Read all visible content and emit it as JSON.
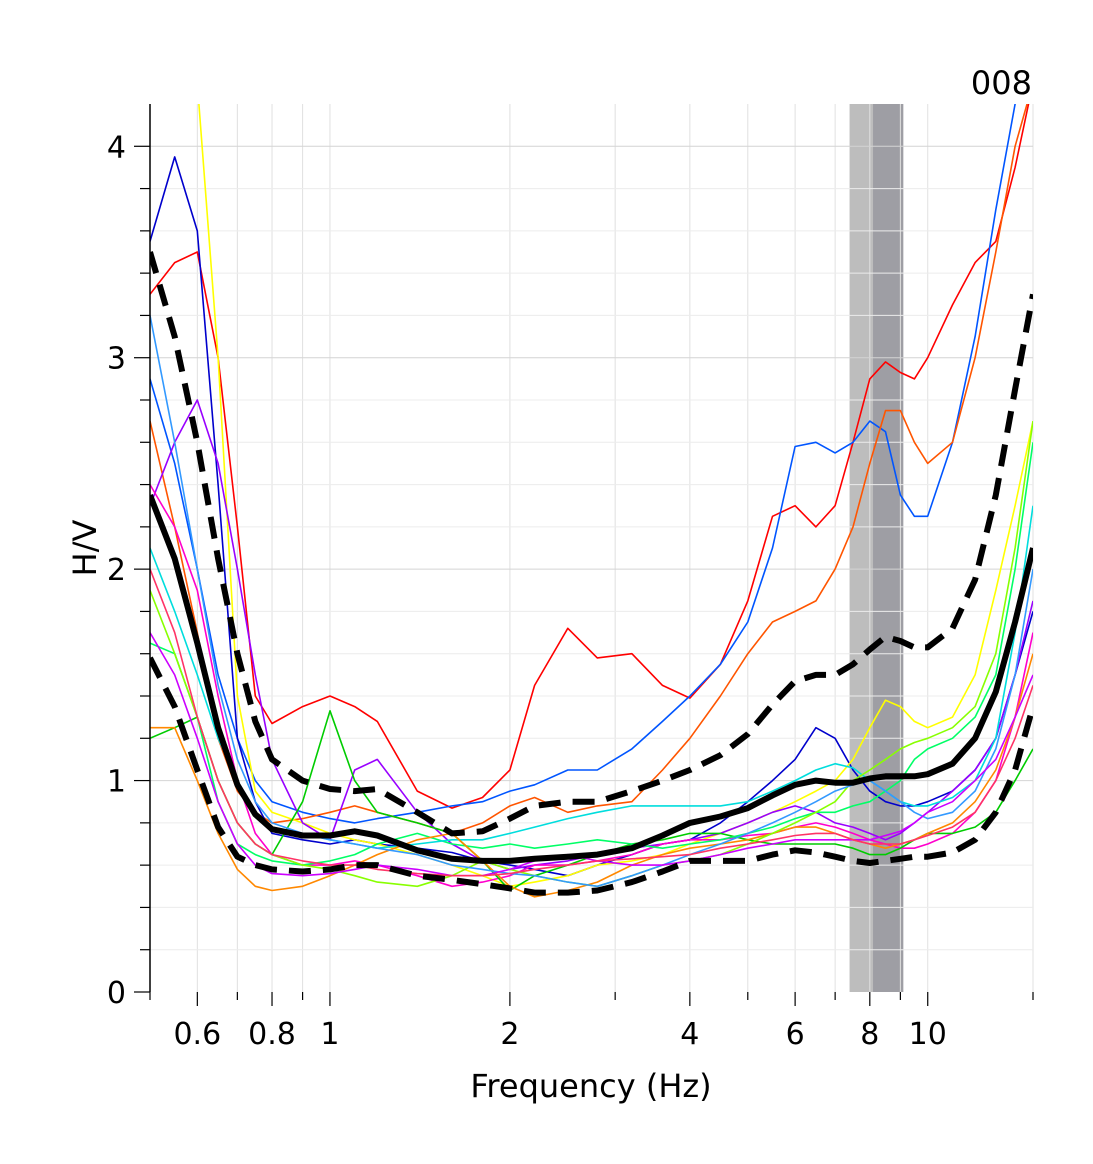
{
  "chart_data": {
    "type": "line",
    "title": "008",
    "xlabel": "Frequency (Hz)",
    "ylabel": "H/V",
    "xscale": "log",
    "xlim": [
      0.5,
      15
    ],
    "ylim": [
      0,
      4.2
    ],
    "x_ticks": [
      {
        "value": 0.6,
        "label": "0.6"
      },
      {
        "value": 0.8,
        "label": "0.8"
      },
      {
        "value": 1,
        "label": "1"
      },
      {
        "value": 2,
        "label": "2"
      },
      {
        "value": 4,
        "label": "4"
      },
      {
        "value": 6,
        "label": "6"
      },
      {
        "value": 8,
        "label": "8"
      },
      {
        "value": 10,
        "label": "10"
      }
    ],
    "y_ticks": [
      {
        "value": 0,
        "label": "0"
      },
      {
        "value": 1,
        "label": "1"
      },
      {
        "value": 2,
        "label": "2"
      },
      {
        "value": 3,
        "label": "3"
      },
      {
        "value": 4,
        "label": "4"
      }
    ],
    "grid": true,
    "peak_band": {
      "outer": [
        7.4,
        9.1
      ],
      "inner": [
        8.1,
        9.1
      ],
      "outer_color": "#bdbdbd",
      "inner_color": "#9e9ea4"
    },
    "x": [
      0.5,
      0.55,
      0.6,
      0.65,
      0.7,
      0.75,
      0.8,
      0.9,
      1.0,
      1.1,
      1.2,
      1.4,
      1.6,
      1.8,
      2.0,
      2.2,
      2.5,
      2.8,
      3.2,
      3.6,
      4.0,
      4.5,
      5.0,
      5.5,
      6.0,
      6.5,
      7.0,
      7.5,
      8.0,
      8.5,
      9.0,
      9.5,
      10,
      11,
      12,
      13,
      14,
      15
    ],
    "mean": {
      "color": "#000000",
      "values": [
        2.35,
        2.05,
        1.65,
        1.25,
        0.98,
        0.84,
        0.77,
        0.74,
        0.74,
        0.76,
        0.74,
        0.67,
        0.63,
        0.62,
        0.62,
        0.63,
        0.64,
        0.65,
        0.68,
        0.74,
        0.8,
        0.83,
        0.87,
        0.93,
        0.98,
        1.0,
        0.99,
        0.99,
        1.01,
        1.02,
        1.02,
        1.02,
        1.03,
        1.08,
        1.2,
        1.42,
        1.75,
        2.1
      ]
    },
    "std_plus": {
      "color": "#000000",
      "values": [
        3.5,
        3.1,
        2.6,
        2.05,
        1.6,
        1.28,
        1.1,
        1.0,
        0.96,
        0.95,
        0.96,
        0.85,
        0.75,
        0.76,
        0.82,
        0.88,
        0.9,
        0.9,
        0.95,
        1.0,
        1.05,
        1.12,
        1.22,
        1.36,
        1.47,
        1.5,
        1.5,
        1.55,
        1.62,
        1.68,
        1.66,
        1.63,
        1.63,
        1.72,
        1.95,
        2.35,
        2.85,
        3.3
      ]
    },
    "std_minus": {
      "color": "#000000",
      "values": [
        1.58,
        1.35,
        1.05,
        0.78,
        0.64,
        0.6,
        0.58,
        0.57,
        0.58,
        0.6,
        0.6,
        0.55,
        0.53,
        0.51,
        0.49,
        0.47,
        0.47,
        0.48,
        0.52,
        0.57,
        0.62,
        0.62,
        0.62,
        0.65,
        0.67,
        0.66,
        0.64,
        0.62,
        0.61,
        0.62,
        0.63,
        0.64,
        0.64,
        0.66,
        0.72,
        0.85,
        1.05,
        1.35
      ]
    },
    "windows": [
      {
        "color": "#ff0000",
        "values": [
          3.3,
          3.45,
          3.5,
          3.0,
          2.2,
          1.4,
          1.27,
          1.35,
          1.4,
          1.35,
          1.28,
          0.95,
          0.87,
          0.92,
          1.05,
          1.45,
          1.72,
          1.58,
          1.6,
          1.45,
          1.39,
          1.55,
          1.85,
          2.25,
          2.3,
          2.2,
          2.3,
          2.6,
          2.9,
          2.98,
          2.93,
          2.9,
          3.0,
          3.25,
          3.45,
          3.55,
          3.9,
          4.3
        ]
      },
      {
        "color": "#0055ff",
        "values": [
          2.9,
          2.5,
          2.0,
          1.5,
          1.2,
          1.0,
          0.9,
          0.85,
          0.82,
          0.8,
          0.82,
          0.85,
          0.88,
          0.9,
          0.95,
          0.98,
          1.05,
          1.05,
          1.15,
          1.28,
          1.4,
          1.55,
          1.75,
          2.1,
          2.58,
          2.6,
          2.55,
          2.6,
          2.7,
          2.65,
          2.35,
          2.25,
          2.25,
          2.6,
          3.1,
          3.7,
          4.2,
          4.6
        ]
      },
      {
        "color": "#ff5500",
        "values": [
          2.7,
          2.2,
          1.7,
          1.2,
          0.95,
          0.85,
          0.8,
          0.82,
          0.85,
          0.88,
          0.85,
          0.8,
          0.75,
          0.8,
          0.88,
          0.92,
          0.85,
          0.88,
          0.9,
          1.05,
          1.2,
          1.4,
          1.6,
          1.75,
          1.8,
          1.85,
          2.0,
          2.2,
          2.5,
          2.75,
          2.75,
          2.6,
          2.5,
          2.6,
          3.0,
          3.5,
          4.0,
          4.3
        ]
      },
      {
        "color": "#0000cc",
        "values": [
          3.55,
          3.95,
          3.6,
          2.4,
          1.2,
          0.9,
          0.75,
          0.72,
          0.7,
          0.72,
          0.7,
          0.68,
          0.66,
          0.62,
          0.6,
          0.58,
          0.55,
          0.6,
          0.65,
          0.7,
          0.72,
          0.8,
          0.9,
          1.0,
          1.1,
          1.25,
          1.2,
          1.05,
          0.95,
          0.9,
          0.88,
          0.88,
          0.9,
          0.95,
          1.05,
          1.2,
          1.5,
          1.8
        ]
      },
      {
        "color": "#ffff00",
        "values": [
          4.3,
          4.3,
          4.3,
          3.0,
          1.4,
          0.95,
          0.85,
          0.8,
          0.75,
          0.72,
          0.7,
          0.65,
          0.6,
          0.55,
          0.5,
          0.52,
          0.55,
          0.6,
          0.62,
          0.65,
          0.7,
          0.75,
          0.8,
          0.85,
          0.9,
          0.95,
          1.0,
          1.1,
          1.25,
          1.38,
          1.35,
          1.28,
          1.25,
          1.3,
          1.5,
          1.9,
          2.3,
          2.7
        ]
      },
      {
        "color": "#9900ff",
        "values": [
          2.3,
          2.6,
          2.8,
          2.5,
          2.0,
          1.5,
          1.1,
          0.8,
          0.72,
          1.05,
          1.1,
          0.85,
          0.7,
          0.62,
          0.58,
          0.6,
          0.62,
          0.65,
          0.68,
          0.7,
          0.72,
          0.75,
          0.8,
          0.85,
          0.88,
          0.85,
          0.8,
          0.78,
          0.75,
          0.72,
          0.75,
          0.8,
          0.85,
          0.95,
          1.05,
          1.2,
          1.5,
          1.85
        ]
      },
      {
        "color": "#ff00cc",
        "values": [
          2.4,
          2.2,
          1.9,
          1.4,
          1.0,
          0.75,
          0.65,
          0.6,
          0.6,
          0.62,
          0.6,
          0.55,
          0.5,
          0.52,
          0.55,
          0.6,
          0.6,
          0.62,
          0.65,
          0.7,
          0.72,
          0.72,
          0.74,
          0.75,
          0.78,
          0.8,
          0.78,
          0.75,
          0.72,
          0.7,
          0.68,
          0.68,
          0.7,
          0.75,
          0.85,
          1.0,
          1.3,
          1.7
        ]
      },
      {
        "color": "#00cc00",
        "values": [
          1.2,
          1.25,
          1.3,
          1.0,
          0.8,
          0.7,
          0.65,
          0.9,
          1.33,
          1.0,
          0.85,
          0.8,
          0.75,
          0.62,
          0.48,
          0.55,
          0.6,
          0.65,
          0.7,
          0.72,
          0.75,
          0.75,
          0.72,
          0.7,
          0.7,
          0.7,
          0.7,
          0.68,
          0.65,
          0.65,
          0.68,
          0.72,
          0.75,
          0.75,
          0.78,
          0.85,
          1.0,
          1.15
        ]
      },
      {
        "color": "#00ff66",
        "values": [
          1.65,
          1.6,
          1.3,
          0.9,
          0.7,
          0.65,
          0.62,
          0.6,
          0.62,
          0.65,
          0.7,
          0.75,
          0.7,
          0.68,
          0.7,
          0.68,
          0.7,
          0.72,
          0.7,
          0.68,
          0.7,
          0.72,
          0.75,
          0.78,
          0.82,
          0.85,
          0.85,
          0.88,
          0.9,
          0.95,
          1.0,
          1.1,
          1.15,
          1.2,
          1.3,
          1.5,
          2.0,
          2.6
        ]
      },
      {
        "color": "#00dddd",
        "values": [
          2.1,
          1.8,
          1.5,
          1.2,
          1.0,
          0.85,
          0.78,
          0.75,
          0.72,
          0.7,
          0.68,
          0.7,
          0.72,
          0.72,
          0.75,
          0.78,
          0.82,
          0.85,
          0.88,
          0.88,
          0.88,
          0.88,
          0.9,
          0.95,
          1.0,
          1.05,
          1.08,
          1.06,
          1.0,
          0.95,
          0.9,
          0.88,
          0.88,
          0.92,
          1.0,
          1.2,
          1.7,
          2.3
        ]
      },
      {
        "color": "#ff8800",
        "values": [
          1.25,
          1.25,
          1.0,
          0.75,
          0.58,
          0.5,
          0.48,
          0.5,
          0.55,
          0.6,
          0.65,
          0.72,
          0.75,
          0.62,
          0.5,
          0.45,
          0.48,
          0.52,
          0.6,
          0.65,
          0.68,
          0.7,
          0.72,
          0.75,
          0.78,
          0.78,
          0.75,
          0.72,
          0.7,
          0.68,
          0.7,
          0.72,
          0.75,
          0.8,
          0.9,
          1.05,
          1.3,
          1.6
        ]
      },
      {
        "color": "#88ff00",
        "values": [
          1.9,
          1.6,
          1.3,
          1.0,
          0.8,
          0.7,
          0.65,
          0.6,
          0.58,
          0.55,
          0.52,
          0.5,
          0.55,
          0.62,
          0.58,
          0.55,
          0.52,
          0.5,
          0.55,
          0.6,
          0.62,
          0.65,
          0.7,
          0.75,
          0.8,
          0.85,
          0.9,
          1.0,
          1.05,
          1.1,
          1.15,
          1.18,
          1.2,
          1.25,
          1.35,
          1.6,
          2.1,
          2.7
        ]
      },
      {
        "color": "#3399ff",
        "values": [
          3.2,
          2.6,
          2.0,
          1.45,
          1.1,
          0.9,
          0.8,
          0.75,
          0.72,
          0.7,
          0.68,
          0.65,
          0.6,
          0.58,
          0.56,
          0.55,
          0.52,
          0.5,
          0.55,
          0.6,
          0.65,
          0.7,
          0.75,
          0.8,
          0.85,
          0.9,
          0.95,
          0.98,
          1.0,
          0.95,
          0.9,
          0.85,
          0.82,
          0.85,
          0.95,
          1.15,
          1.5,
          2.0
        ]
      },
      {
        "color": "#cc00ff",
        "values": [
          1.7,
          1.5,
          1.2,
          0.9,
          0.7,
          0.6,
          0.56,
          0.55,
          0.56,
          0.58,
          0.6,
          0.58,
          0.55,
          0.55,
          0.58,
          0.62,
          0.65,
          0.62,
          0.6,
          0.6,
          0.62,
          0.65,
          0.68,
          0.7,
          0.72,
          0.72,
          0.72,
          0.72,
          0.72,
          0.74,
          0.76,
          0.8,
          0.85,
          0.9,
          1.0,
          1.1,
          1.3,
          1.5
        ]
      },
      {
        "color": "#ff3366",
        "values": [
          2.0,
          1.7,
          1.3,
          1.0,
          0.8,
          0.7,
          0.65,
          0.62,
          0.6,
          0.6,
          0.58,
          0.56,
          0.55,
          0.55,
          0.56,
          0.58,
          0.6,
          0.62,
          0.63,
          0.64,
          0.65,
          0.68,
          0.7,
          0.72,
          0.74,
          0.75,
          0.75,
          0.72,
          0.7,
          0.7,
          0.7,
          0.72,
          0.74,
          0.78,
          0.85,
          1.0,
          1.2,
          1.45
        ]
      }
    ]
  }
}
